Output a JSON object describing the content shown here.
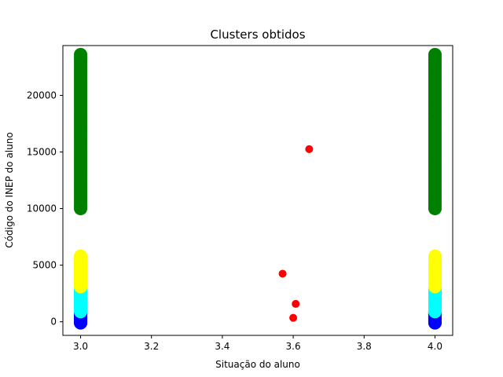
{
  "chart_data": {
    "type": "scatter",
    "title": "Clusters obtidos",
    "xlabel": "Situação do aluno",
    "ylabel": "Código do INEP do aluno",
    "xlim": [
      2.95,
      4.05
    ],
    "ylim": [
      -1200,
      24400
    ],
    "xticks": [
      3.0,
      3.2,
      3.4,
      3.6,
      3.8,
      4.0
    ],
    "xtick_labels": [
      "3.0",
      "3.2",
      "3.4",
      "3.6",
      "3.8",
      "4.0"
    ],
    "yticks": [
      0,
      5000,
      10000,
      15000,
      20000
    ],
    "ytick_labels": [
      "0",
      "5000",
      "10000",
      "15000",
      "20000"
    ],
    "grid": false,
    "legend": null,
    "series": [
      {
        "color": "#0000ff",
        "x_values": [
          3.0,
          4.0
        ],
        "y_range": [
          -100,
          900
        ]
      },
      {
        "color": "#00ffff",
        "x_values": [
          3.0,
          4.0
        ],
        "y_range": [
          900,
          3100
        ]
      },
      {
        "color": "#ffff00",
        "x_values": [
          3.0,
          4.0
        ],
        "y_range": [
          3100,
          5800
        ]
      },
      {
        "color": "#008000",
        "x_values": [
          3.0,
          4.0
        ],
        "y_range": [
          10000,
          23600
        ]
      },
      {
        "color": "#ff0000",
        "points": [
          {
            "x": 3.57,
            "y": 4250
          },
          {
            "x": 3.6,
            "y": 350
          },
          {
            "x": 3.607,
            "y": 1580
          },
          {
            "x": 3.645,
            "y": 15250
          }
        ]
      }
    ]
  }
}
